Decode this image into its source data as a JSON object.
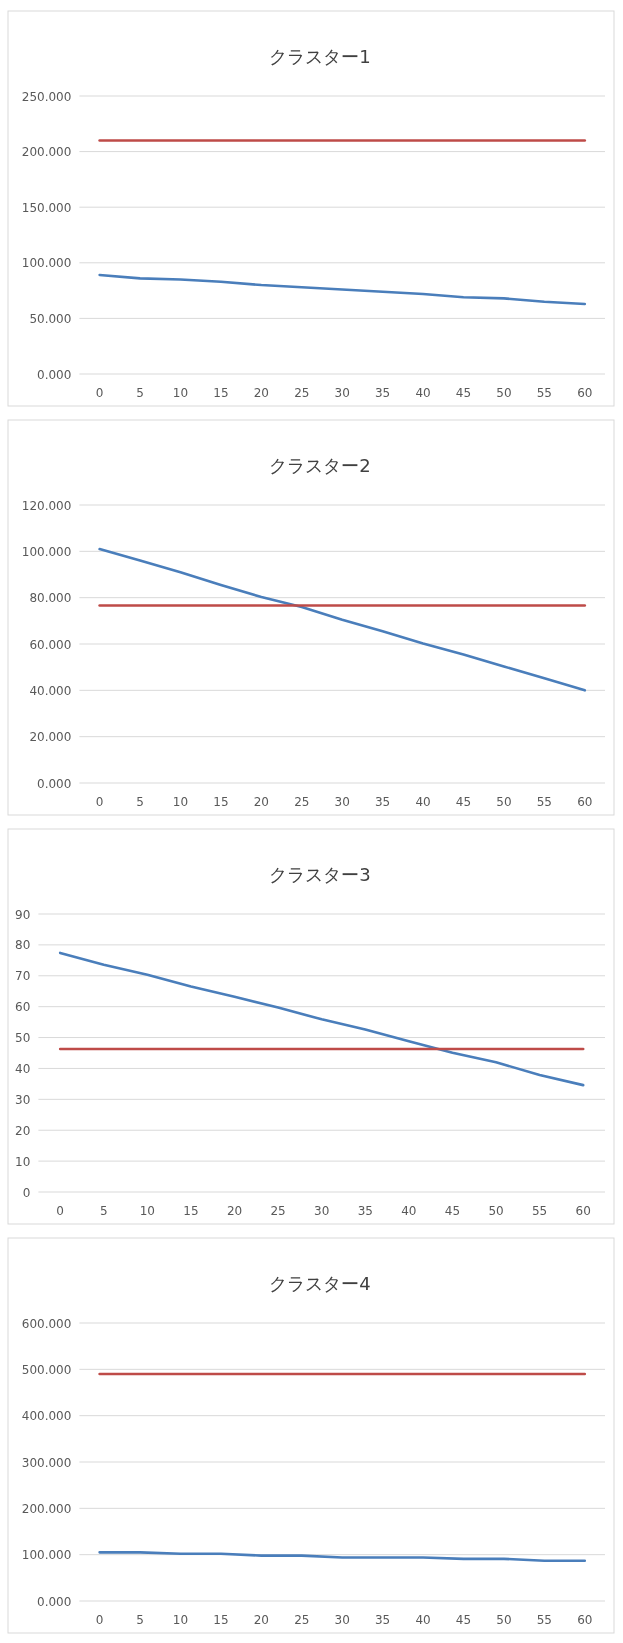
{
  "chart_data": [
    {
      "type": "line",
      "title": "クラスター1",
      "categories": [
        "0",
        "5",
        "10",
        "15",
        "20",
        "25",
        "30",
        "35",
        "40",
        "45",
        "50",
        "55",
        "60"
      ],
      "series": [
        {
          "color": "#4a7ebb",
          "values": [
            89,
            86,
            85,
            83,
            80,
            78,
            76,
            74,
            72,
            69,
            68,
            65,
            63
          ]
        },
        {
          "color": "#be4b48",
          "values": [
            210,
            210,
            210,
            210,
            210,
            210,
            210,
            210,
            210,
            210,
            210,
            210,
            210
          ]
        }
      ],
      "ylim": [
        0,
        250
      ],
      "yticks": [
        {
          "value": 0,
          "label": "0.000"
        },
        {
          "value": 50,
          "label": "50.000"
        },
        {
          "value": 100,
          "label": "100.000"
        },
        {
          "value": 150,
          "label": "150.000"
        },
        {
          "value": 200,
          "label": "200.000"
        },
        {
          "value": 250,
          "label": "250.000"
        }
      ],
      "grid": "y",
      "marker": "none",
      "line_style": "solid"
    },
    {
      "type": "line",
      "title": "クラスター2",
      "categories": [
        "0",
        "5",
        "10",
        "15",
        "20",
        "25",
        "30",
        "35",
        "40",
        "45",
        "50",
        "55",
        "60"
      ],
      "series": [
        {
          "color": "#4a7ebb",
          "values": [
            101,
            96,
            91,
            85.5,
            80.3,
            76,
            70.5,
            65.5,
            60.2,
            55.5,
            50.3,
            45.2,
            40
          ]
        },
        {
          "color": "#be4b48",
          "values": [
            76.6,
            76.6,
            76.6,
            76.6,
            76.6,
            76.6,
            76.6,
            76.6,
            76.6,
            76.6,
            76.6,
            76.6,
            76.6
          ]
        }
      ],
      "ylim": [
        0,
        120
      ],
      "yticks": [
        {
          "value": 0,
          "label": "0.000"
        },
        {
          "value": 20,
          "label": "20.000"
        },
        {
          "value": 40,
          "label": "40.000"
        },
        {
          "value": 60,
          "label": "60.000"
        },
        {
          "value": 80,
          "label": "80.000"
        },
        {
          "value": 100,
          "label": "100.000"
        },
        {
          "value": 120,
          "label": "120.000"
        }
      ],
      "grid": "y",
      "marker": "none",
      "line_style": "solid"
    },
    {
      "type": "line",
      "title": "クラスター3",
      "categories": [
        "0",
        "5",
        "10",
        "15",
        "20",
        "25",
        "30",
        "35",
        "40",
        "45",
        "50",
        "55",
        "60"
      ],
      "series": [
        {
          "color": "#4a7ebb",
          "values": [
            77.4,
            73.6,
            70.3,
            66.5,
            63.2,
            59.7,
            55.9,
            52.6,
            48.8,
            45.1,
            42,
            37.9,
            34.6
          ]
        },
        {
          "color": "#be4b48",
          "values": [
            46.3,
            46.3,
            46.3,
            46.3,
            46.3,
            46.3,
            46.3,
            46.3,
            46.3,
            46.3,
            46.3,
            46.3,
            46.3
          ]
        }
      ],
      "ylim": [
        0,
        90
      ],
      "yticks": [
        0,
        10,
        20,
        30,
        40,
        50,
        60,
        70,
        80,
        90
      ],
      "grid": "y",
      "marker": "none",
      "line_style": "solid"
    },
    {
      "type": "line",
      "title": "クラスター4",
      "categories": [
        "0",
        "5",
        "10",
        "15",
        "20",
        "25",
        "30",
        "35",
        "40",
        "45",
        "50",
        "55",
        "60"
      ],
      "series": [
        {
          "color": "#4a7ebb",
          "values": [
            105,
            105,
            102,
            102,
            98,
            98,
            94,
            94,
            94,
            91,
            91,
            87,
            87
          ]
        },
        {
          "color": "#be4b48",
          "values": [
            490,
            490,
            490,
            490,
            490,
            490,
            490,
            490,
            490,
            490,
            490,
            490,
            490
          ]
        }
      ],
      "ylim": [
        0,
        600
      ],
      "yticks": [
        {
          "value": 0,
          "label": "0.000"
        },
        {
          "value": 100,
          "label": "100.000"
        },
        {
          "value": 200,
          "label": "200.000"
        },
        {
          "value": 300,
          "label": "300.000"
        },
        {
          "value": 400,
          "label": "400.000"
        },
        {
          "value": 500,
          "label": "500.000"
        },
        {
          "value": 600,
          "label": "600.000"
        }
      ],
      "grid": "y",
      "marker": "none",
      "line_style": "solid"
    }
  ]
}
